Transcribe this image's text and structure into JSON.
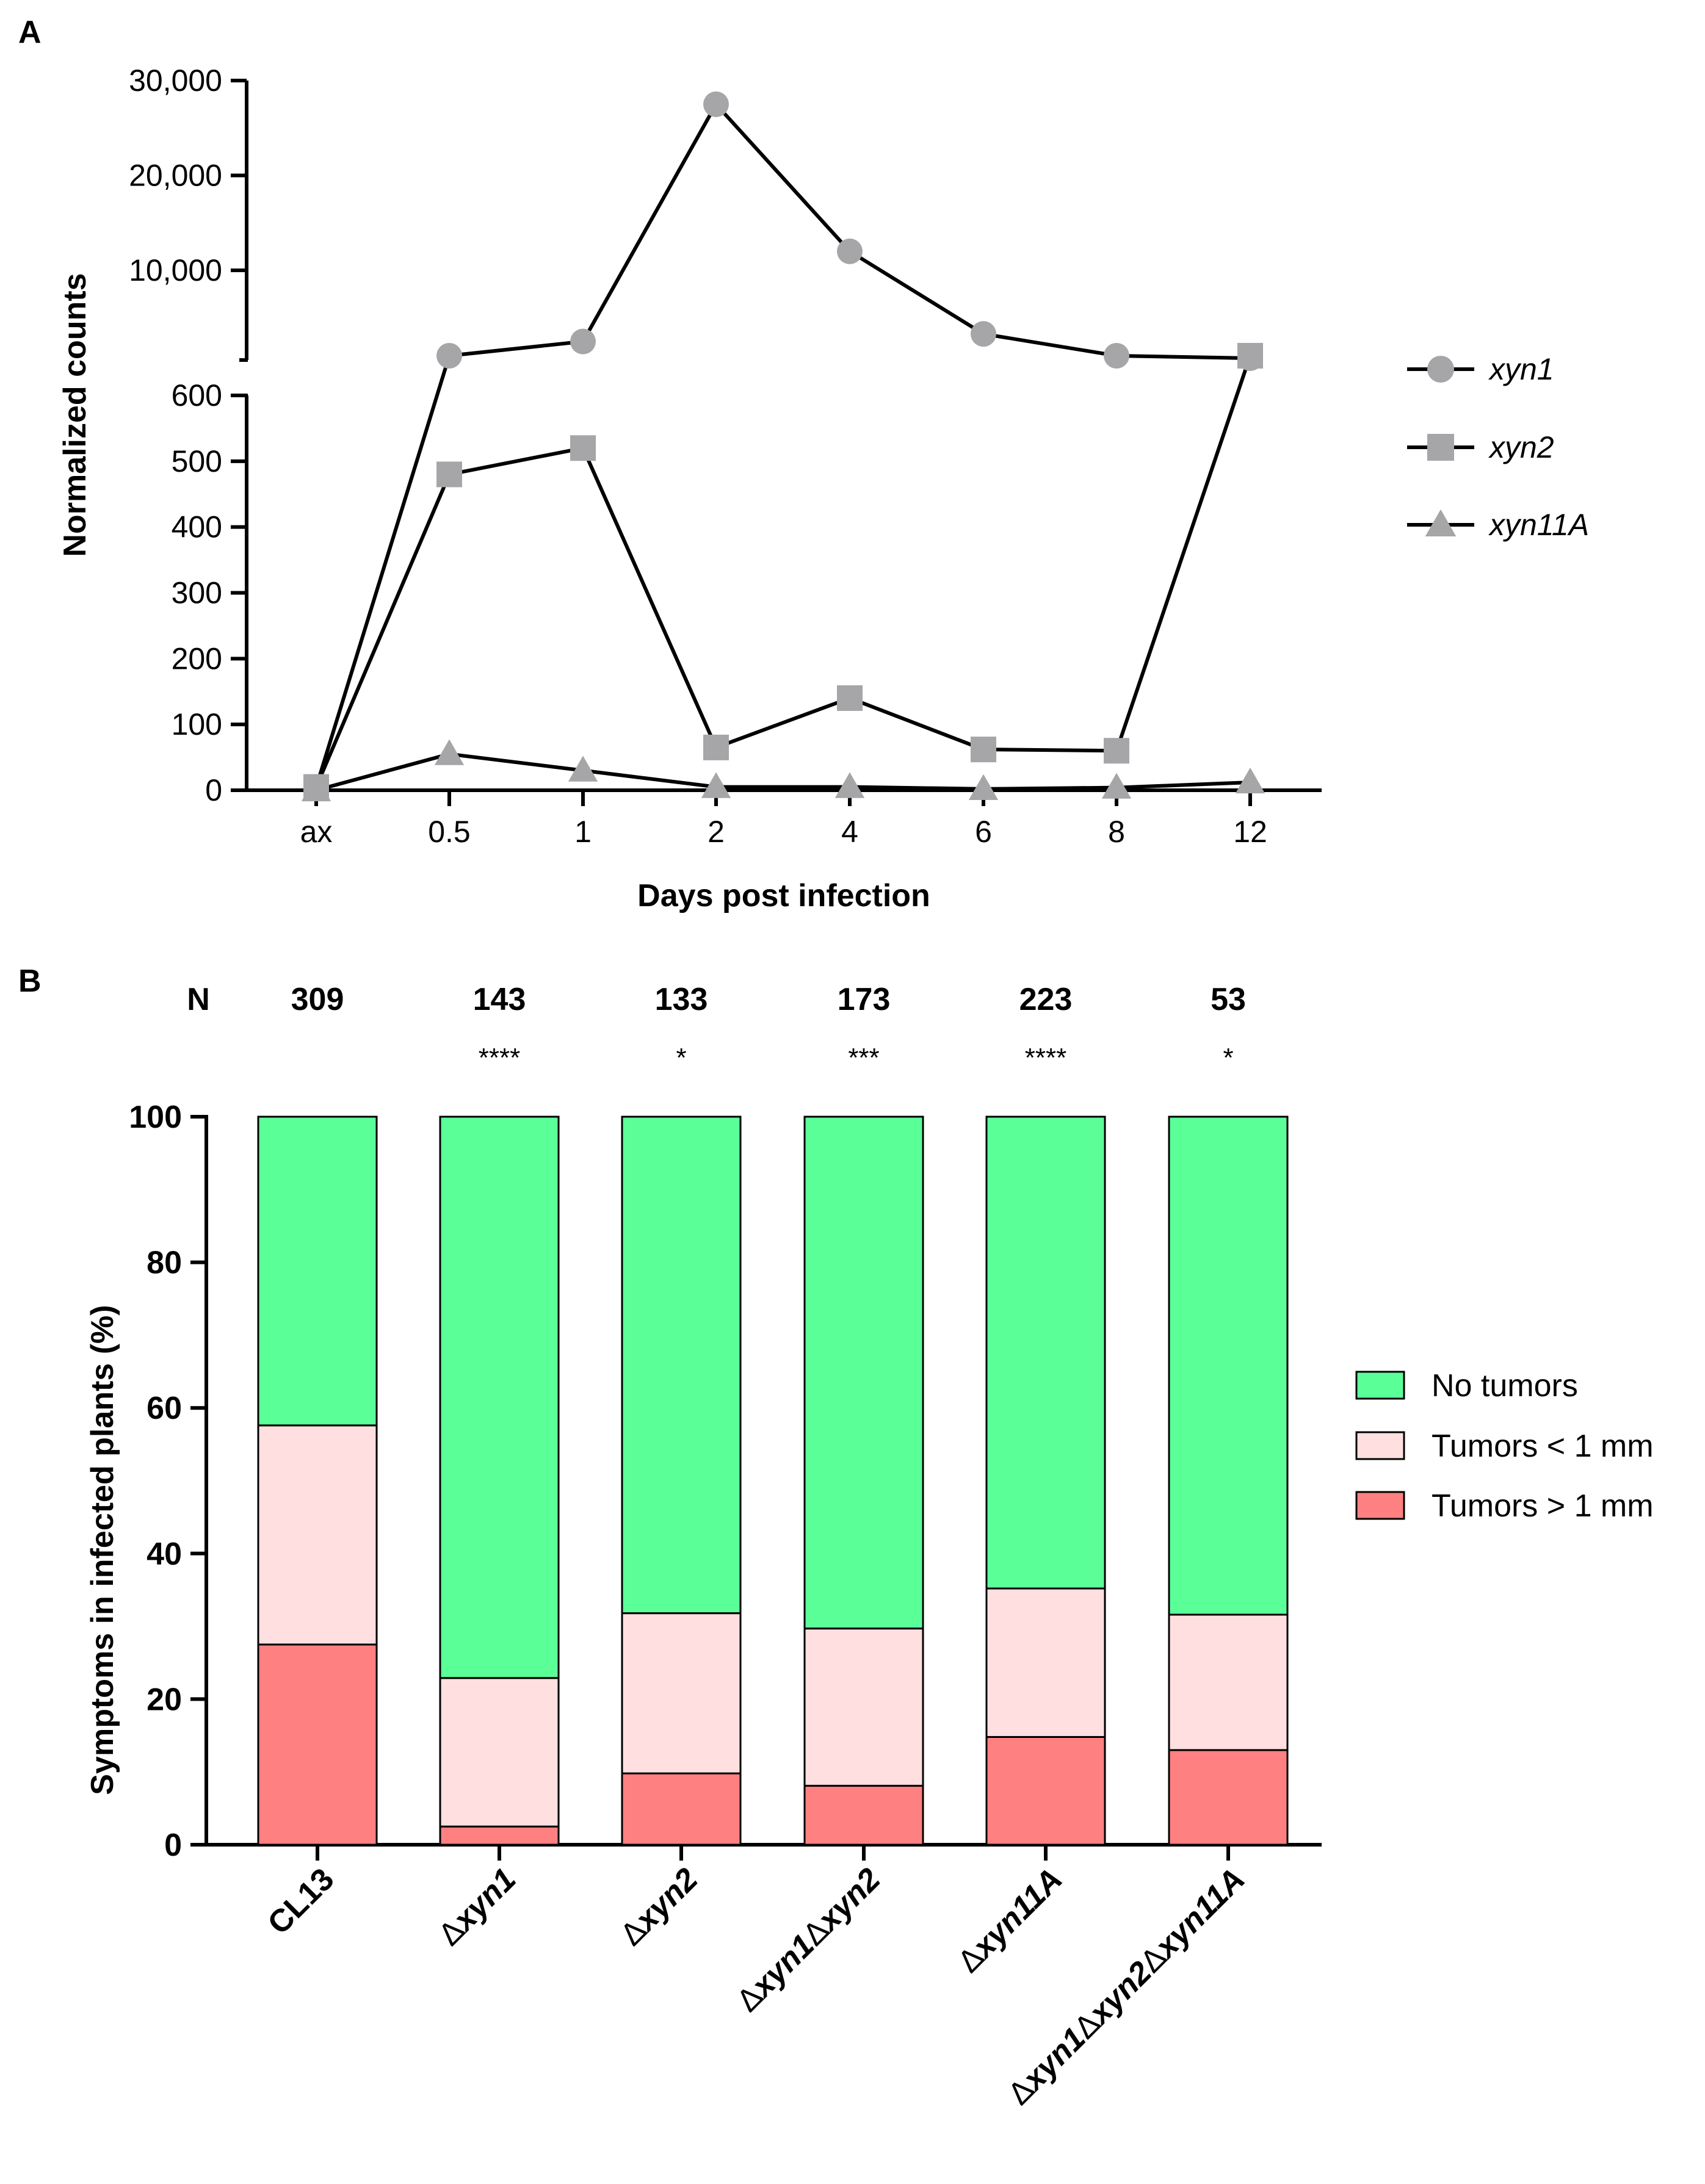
{
  "panel_labels": {
    "a": "A",
    "b": "B"
  },
  "chart_data": [
    {
      "type": "line",
      "panel": "A",
      "xlabel": "Days post infection",
      "ylabel": "Normalized counts",
      "categories": [
        "ax",
        "0.5",
        "1",
        "2",
        "4",
        "6",
        "8",
        "12"
      ],
      "y_axis_lower": {
        "range": [
          0,
          600
        ],
        "ticks": [
          "0",
          "100",
          "200",
          "300",
          "400",
          "500",
          "600"
        ]
      },
      "y_axis_upper": {
        "range": [
          0,
          30000
        ],
        "ticks": [
          "10,000",
          "20,000",
          "30,000"
        ]
      },
      "series": [
        {
          "name": "xyn1",
          "marker": "circle",
          "values": [
            5,
            1000,
            2500,
            27500,
            12000,
            3300,
            1000,
            700
          ]
        },
        {
          "name": "xyn2",
          "marker": "square",
          "values": [
            5,
            480,
            520,
            65,
            140,
            62,
            60,
            1000
          ]
        },
        {
          "name": "xyn11A",
          "marker": "triangle",
          "values": [
            0,
            55,
            30,
            5,
            5,
            2,
            4,
            12
          ]
        }
      ],
      "series_color": "#a6a6a8",
      "line_color": "#000000"
    },
    {
      "type": "bar",
      "stacked": true,
      "panel": "B",
      "ylabel": "Symptoms in infected plants (%)",
      "ylim": [
        0,
        100
      ],
      "yticks": [
        "0",
        "20",
        "40",
        "60",
        "80",
        "100"
      ],
      "n_header": "N",
      "categories": [
        "CL13",
        "Δxyn1",
        "Δxyn2",
        "Δxyn1Δxyn2",
        "Δxyn11A",
        "Δxyn1Δxyn2Δxyn11A"
      ],
      "n_values": [
        "309",
        "143",
        "133",
        "173",
        "223",
        "53"
      ],
      "significance": [
        "",
        "****",
        "*",
        "***",
        "****",
        "*"
      ],
      "series": [
        {
          "name": "Tumors > 1 mm",
          "color": "#ff8080",
          "values": [
            27.5,
            2.5,
            9.8,
            8.1,
            14.8,
            13.0
          ]
        },
        {
          "name": "Tumors < 1 mm",
          "color": "#ffdfe0",
          "values": [
            30.1,
            20.4,
            22.0,
            21.6,
            20.4,
            18.6
          ]
        },
        {
          "name": "No tumors",
          "color": "#5bff98",
          "values": [
            42.4,
            77.1,
            68.2,
            70.3,
            64.8,
            68.4
          ]
        }
      ],
      "legend_order": [
        "No tumors",
        "Tumors < 1 mm",
        "Tumors > 1 mm"
      ]
    }
  ]
}
